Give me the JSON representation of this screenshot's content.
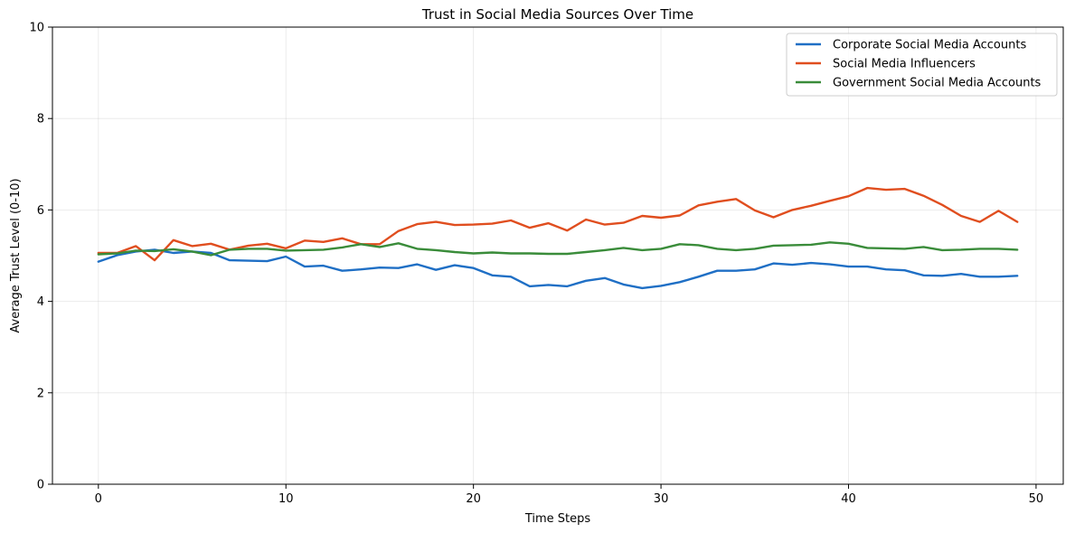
{
  "chart_data": {
    "type": "line",
    "title": "Trust in Social Media Sources Over Time",
    "xlabel": "Time Steps",
    "ylabel": "Average Trust Level (0-10)",
    "xlim": [
      -2.45,
      51.45
    ],
    "ylim": [
      0,
      10
    ],
    "xticks": [
      0,
      10,
      20,
      30,
      40,
      50
    ],
    "yticks": [
      0,
      2,
      4,
      6,
      8,
      10
    ],
    "grid": true,
    "legend_position": "top-right",
    "x": [
      0,
      1,
      2,
      3,
      4,
      5,
      6,
      7,
      8,
      9,
      10,
      11,
      12,
      13,
      14,
      15,
      16,
      17,
      18,
      19,
      20,
      21,
      22,
      23,
      24,
      25,
      26,
      27,
      28,
      29,
      30,
      31,
      32,
      33,
      34,
      35,
      36,
      37,
      38,
      39,
      40,
      41,
      42,
      43,
      44,
      45,
      46,
      47,
      48,
      49
    ],
    "series": [
      {
        "name": "Corporate Social Media Accounts",
        "color": "#1f6fc5",
        "values": [
          4.87,
          5.01,
          5.09,
          5.13,
          5.06,
          5.09,
          5.06,
          4.9,
          4.89,
          4.88,
          4.98,
          4.76,
          4.78,
          4.67,
          4.7,
          4.74,
          4.73,
          4.81,
          4.69,
          4.79,
          4.73,
          4.57,
          4.54,
          4.33,
          4.36,
          4.33,
          4.45,
          4.51,
          4.37,
          4.29,
          4.34,
          4.42,
          4.54,
          4.67,
          4.67,
          4.7,
          4.83,
          4.8,
          4.84,
          4.81,
          4.76,
          4.76,
          4.7,
          4.68,
          4.57,
          4.56,
          4.6,
          4.54,
          4.54,
          4.56
        ]
      },
      {
        "name": "Social Media Influencers",
        "color": "#e04e1f",
        "values": [
          5.06,
          5.06,
          5.21,
          4.9,
          5.34,
          5.21,
          5.26,
          5.13,
          5.22,
          5.26,
          5.16,
          5.33,
          5.3,
          5.38,
          5.25,
          5.25,
          5.54,
          5.69,
          5.74,
          5.67,
          5.68,
          5.7,
          5.77,
          5.61,
          5.71,
          5.55,
          5.79,
          5.68,
          5.72,
          5.87,
          5.83,
          5.88,
          6.1,
          6.18,
          6.24,
          5.99,
          5.84,
          6.0,
          6.09,
          6.2,
          6.3,
          6.48,
          6.44,
          6.46,
          6.31,
          6.11,
          5.87,
          5.74,
          5.98,
          5.74
        ]
      },
      {
        "name": "Government Social Media Accounts",
        "color": "#3a8c3a",
        "values": [
          5.03,
          5.05,
          5.11,
          5.1,
          5.14,
          5.09,
          5.01,
          5.13,
          5.15,
          5.15,
          5.11,
          5.12,
          5.13,
          5.18,
          5.25,
          5.19,
          5.27,
          5.15,
          5.12,
          5.08,
          5.05,
          5.07,
          5.05,
          5.05,
          5.04,
          5.04,
          5.08,
          5.12,
          5.17,
          5.12,
          5.15,
          5.25,
          5.23,
          5.15,
          5.12,
          5.15,
          5.22,
          5.23,
          5.24,
          5.29,
          5.26,
          5.17,
          5.16,
          5.15,
          5.19,
          5.12,
          5.13,
          5.15,
          5.15,
          5.13
        ]
      }
    ]
  }
}
